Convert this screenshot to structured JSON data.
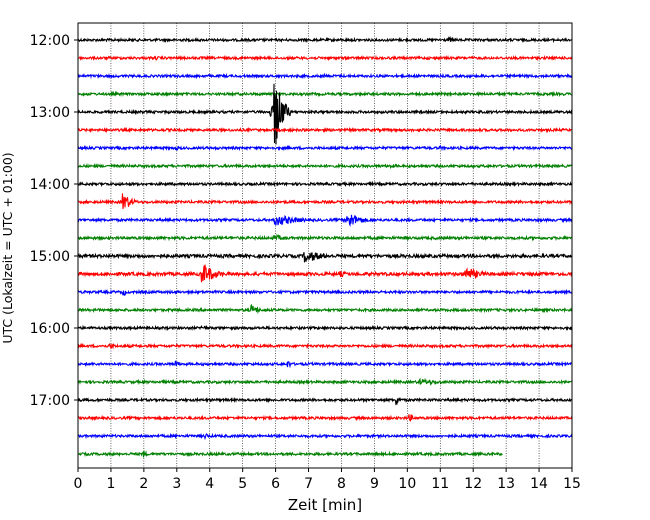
{
  "chart_data": {
    "type": "line",
    "subtype": "helicorder",
    "xlabel": "Zeit  [min]",
    "ylabel": "UTC (Lokalzeit = UTC + 01:00)",
    "xlim": [
      0,
      15
    ],
    "x_ticks": [
      "0",
      "1",
      "2",
      "3",
      "4",
      "5",
      "6",
      "7",
      "8",
      "9",
      "10",
      "11",
      "12",
      "13",
      "14",
      "15"
    ],
    "y_tick_labels": [
      "12:00",
      "13:00",
      "14:00",
      "15:00",
      "16:00",
      "17:00"
    ],
    "grid": "vertical dotted at each minute",
    "color_cycle": [
      "#000000",
      "#ff0000",
      "#0000ff",
      "#008000"
    ],
    "series": [
      {
        "start": "12:00",
        "color": "#000000",
        "end_min": 15,
        "noise": 1.2,
        "events": [
          {
            "t": 11.3,
            "amp": 2.5,
            "dur": 0.4
          }
        ]
      },
      {
        "start": "12:15",
        "color": "#ff0000",
        "end_min": 15,
        "noise": 1.2,
        "events": [
          {
            "t": 2.4,
            "amp": 2,
            "dur": 0.3
          }
        ]
      },
      {
        "start": "12:30",
        "color": "#0000ff",
        "end_min": 15,
        "noise": 1.2,
        "events": [
          {
            "t": 7.5,
            "amp": 2,
            "dur": 0.5
          }
        ]
      },
      {
        "start": "12:45",
        "color": "#008000",
        "end_min": 15,
        "noise": 1.2,
        "events": []
      },
      {
        "start": "13:00",
        "color": "#000000",
        "end_min": 15,
        "noise": 1.2,
        "events": [
          {
            "t": 6.0,
            "amp": 38,
            "dur": 0.45
          }
        ]
      },
      {
        "start": "13:15",
        "color": "#ff0000",
        "end_min": 15,
        "noise": 1.2,
        "events": []
      },
      {
        "start": "13:30",
        "color": "#0000ff",
        "end_min": 15,
        "noise": 1.2,
        "events": [
          {
            "t": 3.0,
            "amp": 2,
            "dur": 0.5
          },
          {
            "t": 11.0,
            "amp": 2,
            "dur": 0.5
          }
        ]
      },
      {
        "start": "13:45",
        "color": "#008000",
        "end_min": 15,
        "noise": 1.2,
        "events": [
          {
            "t": 9.5,
            "amp": 2,
            "dur": 0.8
          }
        ]
      },
      {
        "start": "14:00",
        "color": "#000000",
        "end_min": 15,
        "noise": 1.2,
        "events": []
      },
      {
        "start": "14:15",
        "color": "#ff0000",
        "end_min": 15,
        "noise": 1.2,
        "events": [
          {
            "t": 1.4,
            "amp": 9,
            "dur": 0.5
          }
        ]
      },
      {
        "start": "14:30",
        "color": "#0000ff",
        "end_min": 15,
        "noise": 1.2,
        "events": [
          {
            "t": 6.0,
            "amp": 6,
            "dur": 1.6
          },
          {
            "t": 8.2,
            "amp": 9,
            "dur": 0.8
          }
        ]
      },
      {
        "start": "14:45",
        "color": "#008000",
        "end_min": 15,
        "noise": 1.3,
        "events": [
          {
            "t": 6.0,
            "amp": 3,
            "dur": 1.0
          }
        ]
      },
      {
        "start": "15:00",
        "color": "#000000",
        "end_min": 15,
        "noise": 1.6,
        "events": [
          {
            "t": 6.9,
            "amp": 7,
            "dur": 1.2
          }
        ]
      },
      {
        "start": "15:15",
        "color": "#ff0000",
        "end_min": 15,
        "noise": 1.6,
        "events": [
          {
            "t": 3.8,
            "amp": 11,
            "dur": 0.8
          },
          {
            "t": 11.8,
            "amp": 7,
            "dur": 1.0
          },
          {
            "t": 8.0,
            "amp": 3,
            "dur": 0.6
          }
        ]
      },
      {
        "start": "15:30",
        "color": "#0000ff",
        "end_min": 15,
        "noise": 1.2,
        "events": [
          {
            "t": 1.4,
            "amp": 4,
            "dur": 0.2
          }
        ]
      },
      {
        "start": "15:45",
        "color": "#008000",
        "end_min": 15,
        "noise": 1.2,
        "events": [
          {
            "t": 5.3,
            "amp": 6,
            "dur": 0.4
          }
        ]
      },
      {
        "start": "16:00",
        "color": "#000000",
        "end_min": 15,
        "noise": 1.2,
        "events": [
          {
            "t": 3.8,
            "amp": 3,
            "dur": 0.4
          }
        ]
      },
      {
        "start": "16:15",
        "color": "#ff0000",
        "end_min": 15,
        "noise": 1.2,
        "events": [
          {
            "t": 1.0,
            "amp": 3,
            "dur": 0.4
          }
        ]
      },
      {
        "start": "16:30",
        "color": "#0000ff",
        "end_min": 15,
        "noise": 1.2,
        "events": [
          {
            "t": 3.0,
            "amp": 4,
            "dur": 0.2
          },
          {
            "t": 6.4,
            "amp": 4,
            "dur": 0.2
          }
        ]
      },
      {
        "start": "16:45",
        "color": "#008000",
        "end_min": 15,
        "noise": 1.2,
        "events": [
          {
            "t": 10.4,
            "amp": 3,
            "dur": 2.0
          }
        ]
      },
      {
        "start": "17:00",
        "color": "#000000",
        "end_min": 15,
        "noise": 1.2,
        "events": [
          {
            "t": 9.7,
            "amp": 6,
            "dur": 0.15
          }
        ]
      },
      {
        "start": "17:15",
        "color": "#ff0000",
        "end_min": 15,
        "noise": 1.2,
        "events": [
          {
            "t": 10.1,
            "amp": 4,
            "dur": 0.2
          }
        ]
      },
      {
        "start": "17:30",
        "color": "#0000ff",
        "end_min": 15,
        "noise": 1.2,
        "events": [
          {
            "t": 3.9,
            "amp": 3,
            "dur": 0.2
          }
        ]
      },
      {
        "start": "17:45",
        "color": "#008000",
        "end_min": 12.9,
        "noise": 1.2,
        "events": [
          {
            "t": 2.0,
            "amp": 4,
            "dur": 0.2
          }
        ]
      }
    ]
  }
}
